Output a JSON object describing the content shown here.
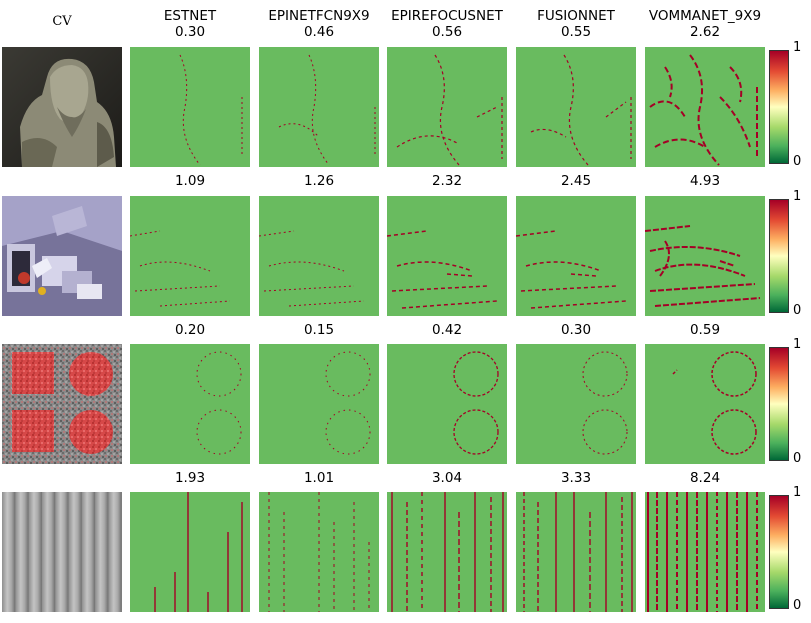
{
  "header": {
    "input_label": "CV",
    "methods": [
      "ESTNET",
      "EPINETFCN9X9",
      "EPIREFOCUSNET",
      "FUSIONNET",
      "VOMMANET_9X9"
    ]
  },
  "rows": [
    {
      "name": "statue",
      "scores": [
        "0.30",
        "0.46",
        "0.56",
        "0.55",
        "2.62"
      ]
    },
    {
      "name": "boxes",
      "scores": [
        "1.09",
        "1.26",
        "2.32",
        "2.45",
        "4.93"
      ]
    },
    {
      "name": "dots",
      "scores": [
        "0.20",
        "0.15",
        "0.42",
        "0.30",
        "0.59"
      ]
    },
    {
      "name": "stripes",
      "scores": [
        "1.93",
        "1.01",
        "3.04",
        "3.33",
        "8.24"
      ]
    }
  ],
  "colorbar": {
    "max_label": "1",
    "min_label": "0"
  },
  "colors": {
    "good": "#69bb5f",
    "bad": "#a50026"
  }
}
